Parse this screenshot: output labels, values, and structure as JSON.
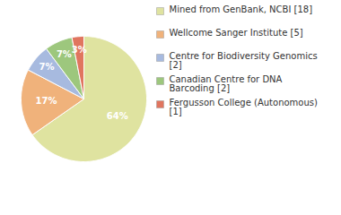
{
  "chart_data": {
    "type": "pie",
    "categories": [
      "Mined from GenBank, NCBI [18]",
      "Wellcome Sanger Institute [5]",
      "Centre for Biodiversity Genomics [2]",
      "Canadian Centre for DNA Barcoding [2]",
      "Fergusson College (Autonomous) [1]"
    ],
    "values": [
      64,
      17,
      7,
      7,
      3
    ],
    "value_labels": [
      "64%",
      "17%",
      "7%",
      "7%",
      "3%"
    ],
    "colors": [
      "#dfe3a0",
      "#f0b27b",
      "#a7badf",
      "#9dc77d",
      "#e0755f"
    ],
    "data_labels": true,
    "legend": "right"
  }
}
